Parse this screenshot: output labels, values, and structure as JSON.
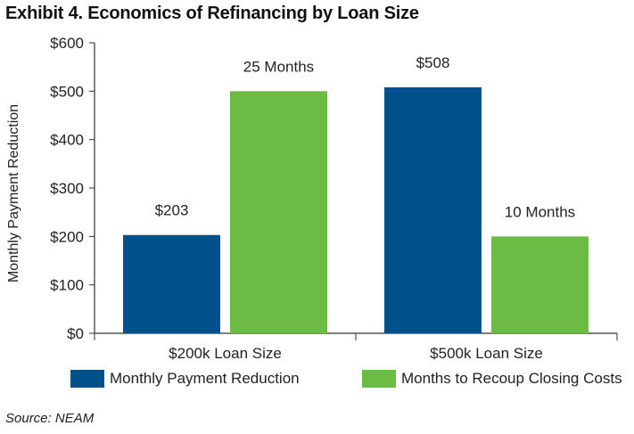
{
  "title": "Exhibit 4. Economics of Refinancing by Loan Size",
  "source": "Source: NEAM",
  "colors": {
    "payment": "#00508a",
    "months": "#6cbb45"
  },
  "chart_data": {
    "type": "bar",
    "categories": [
      "$200k Loan Size",
      "$500k Loan Size"
    ],
    "series": [
      {
        "name": "Monthly Payment Reduction",
        "values": [
          203,
          508
        ],
        "labels": [
          "$203",
          "$508"
        ]
      },
      {
        "name": "Months to Recoup Closing Costs",
        "values": [
          25,
          10
        ],
        "labels": [
          "25 Months",
          "10 Months"
        ]
      }
    ],
    "months_scale_note": "",
    "ylabel": "Monthly Payment Reduction",
    "ylim": [
      0,
      600
    ],
    "yticks": [
      "$0",
      "$100",
      "$200",
      "$300",
      "$400",
      "$500",
      "$600"
    ],
    "grid": false,
    "legend": "bottom"
  }
}
